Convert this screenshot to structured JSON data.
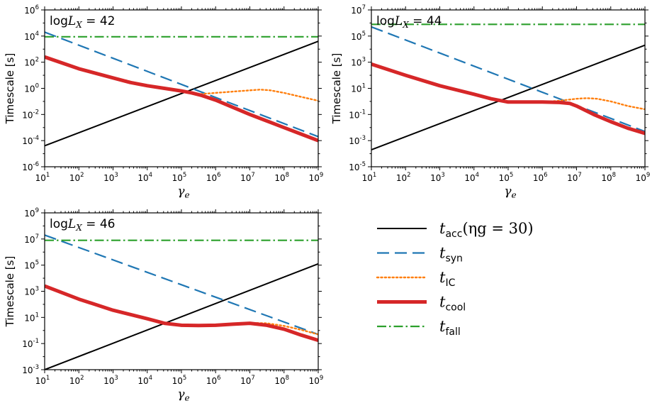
{
  "chart_data": [
    {
      "type": "line",
      "title_prefix": "log",
      "title_var": "L",
      "title_sub": "X",
      "title_value": "= 42",
      "xlabel": "γe",
      "ylabel": "Timescale [s]",
      "xscale": "log",
      "yscale": "log",
      "xlim": [
        1,
        9
      ],
      "ylim": [
        -6,
        6
      ],
      "xtick_exponents": [
        "1",
        "2",
        "3",
        "4",
        "5",
        "6",
        "7",
        "8",
        "9"
      ],
      "ytick_exponents": [
        "-6",
        "-4",
        "-2",
        "0",
        "2",
        "4",
        "6"
      ],
      "ytick_positions": [
        -6,
        -4,
        -2,
        0,
        2,
        4,
        6
      ],
      "series": [
        {
          "name": "t_acc",
          "x": [
            1,
            9
          ],
          "y": [
            -4.4,
            3.6
          ]
        },
        {
          "name": "t_syn",
          "x": [
            1,
            9
          ],
          "y": [
            4.3,
            -3.7
          ]
        },
        {
          "name": "t_IC",
          "x": [
            1,
            2,
            3,
            4,
            4.5,
            5,
            5.5,
            6,
            6.5,
            7,
            7.3,
            7.6,
            8,
            8.5,
            9
          ],
          "y": [
            2.4,
            1.5,
            0.85,
            0.2,
            -0.05,
            -0.25,
            -0.45,
            -0.35,
            -0.25,
            -0.15,
            -0.1,
            -0.15,
            -0.35,
            -0.65,
            -0.95
          ]
        },
        {
          "name": "t_cool",
          "x": [
            1,
            2,
            3,
            3.5,
            4,
            4.5,
            5,
            5.3,
            5.6,
            6,
            6.5,
            7,
            7.5,
            8,
            8.5,
            9
          ],
          "y": [
            2.4,
            1.5,
            0.8,
            0.45,
            0.2,
            0.0,
            -0.2,
            -0.35,
            -0.55,
            -0.9,
            -1.45,
            -2.0,
            -2.5,
            -3.0,
            -3.5,
            -4.0
          ]
        },
        {
          "name": "t_fall",
          "x": [
            1,
            9
          ],
          "y": [
            3.95,
            3.95
          ]
        }
      ]
    },
    {
      "type": "line",
      "title_prefix": "log",
      "title_var": "L",
      "title_sub": "X",
      "title_value": "= 44",
      "xlabel": "γe",
      "ylabel": "Timescale [s]",
      "xscale": "log",
      "yscale": "log",
      "xlim": [
        1,
        9
      ],
      "ylim": [
        -5,
        7
      ],
      "xtick_exponents": [
        "1",
        "2",
        "3",
        "4",
        "5",
        "6",
        "7",
        "8",
        "9"
      ],
      "ytick_exponents": [
        "-5",
        "-3",
        "-1",
        "1",
        "3",
        "5",
        "7"
      ],
      "ytick_positions": [
        -5,
        -3,
        -1,
        1,
        3,
        5,
        7
      ],
      "series": [
        {
          "name": "t_acc",
          "x": [
            1,
            9
          ],
          "y": [
            -3.7,
            4.3
          ]
        },
        {
          "name": "t_syn",
          "x": [
            1,
            9
          ],
          "y": [
            5.7,
            -2.3
          ]
        },
        {
          "name": "t_IC",
          "x": [
            1,
            2,
            3,
            4,
            4.5,
            5,
            5.5,
            6,
            6.5,
            7,
            7.3,
            7.6,
            8,
            8.5,
            9
          ],
          "y": [
            2.85,
            2.0,
            1.2,
            0.55,
            0.2,
            -0.05,
            -0.05,
            -0.05,
            0.05,
            0.2,
            0.25,
            0.2,
            0.0,
            -0.35,
            -0.6
          ]
        },
        {
          "name": "t_cool",
          "x": [
            1,
            2,
            3,
            4,
            4.5,
            5,
            5.5,
            6,
            6.5,
            6.8,
            7,
            7.5,
            8,
            8.5,
            9
          ],
          "y": [
            2.85,
            2.0,
            1.2,
            0.55,
            0.2,
            -0.05,
            -0.05,
            -0.05,
            -0.08,
            -0.15,
            -0.35,
            -1.0,
            -1.55,
            -2.05,
            -2.45
          ]
        },
        {
          "name": "t_fall",
          "x": [
            1,
            9
          ],
          "y": [
            5.9,
            5.9
          ]
        }
      ]
    },
    {
      "type": "line",
      "title_prefix": "log",
      "title_var": "L",
      "title_sub": "X",
      "title_value": "= 46",
      "xlabel": "γe",
      "ylabel": "Timescale [s]",
      "xscale": "log",
      "yscale": "log",
      "xlim": [
        1,
        9
      ],
      "ylim": [
        -3,
        9
      ],
      "xtick_exponents": [
        "1",
        "2",
        "3",
        "4",
        "5",
        "6",
        "7",
        "8",
        "9"
      ],
      "ytick_exponents": [
        "-3",
        "-1",
        "1",
        "3",
        "5",
        "7",
        "9"
      ],
      "ytick_positions": [
        -3,
        -1,
        1,
        3,
        5,
        7,
        9
      ],
      "series": [
        {
          "name": "t_acc",
          "x": [
            1,
            9
          ],
          "y": [
            -3.0,
            5.1
          ]
        },
        {
          "name": "t_syn",
          "x": [
            1,
            9
          ],
          "y": [
            7.3,
            -0.3
          ]
        },
        {
          "name": "t_IC",
          "x": [
            1,
            2,
            3,
            4,
            4.5,
            5,
            5.5,
            6,
            6.5,
            7,
            7.5,
            8,
            8.5,
            9
          ],
          "y": [
            3.4,
            2.4,
            1.55,
            0.9,
            0.55,
            0.4,
            0.38,
            0.4,
            0.48,
            0.58,
            0.55,
            0.35,
            0.05,
            -0.3
          ]
        },
        {
          "name": "t_cool",
          "x": [
            1,
            2,
            3,
            4,
            4.5,
            5,
            5.5,
            6,
            6.5,
            7,
            7.5,
            8,
            8.5,
            9
          ],
          "y": [
            3.4,
            2.4,
            1.55,
            0.9,
            0.55,
            0.4,
            0.38,
            0.4,
            0.48,
            0.55,
            0.4,
            0.1,
            -0.35,
            -0.75
          ]
        },
        {
          "name": "t_fall",
          "x": [
            1,
            9
          ],
          "y": [
            6.9,
            6.9
          ]
        }
      ]
    }
  ],
  "legend": {
    "position": "lower-right",
    "entries": [
      {
        "key": "t_acc",
        "var": "t",
        "sub": "acc",
        "extra": "(ηg = 30)",
        "color": "#000000"
      },
      {
        "key": "t_syn",
        "var": "t",
        "sub": "syn",
        "extra": "",
        "color": "#1f77b4"
      },
      {
        "key": "t_IC",
        "var": "t",
        "sub": "IC",
        "extra": "",
        "color": "#ff7f0e"
      },
      {
        "key": "t_cool",
        "var": "t",
        "sub": "cool",
        "extra": "",
        "color": "#d62728"
      },
      {
        "key": "t_fall",
        "var": "t",
        "sub": "fall",
        "extra": "",
        "color": "#2ca02c"
      }
    ]
  },
  "tick_base": "10"
}
